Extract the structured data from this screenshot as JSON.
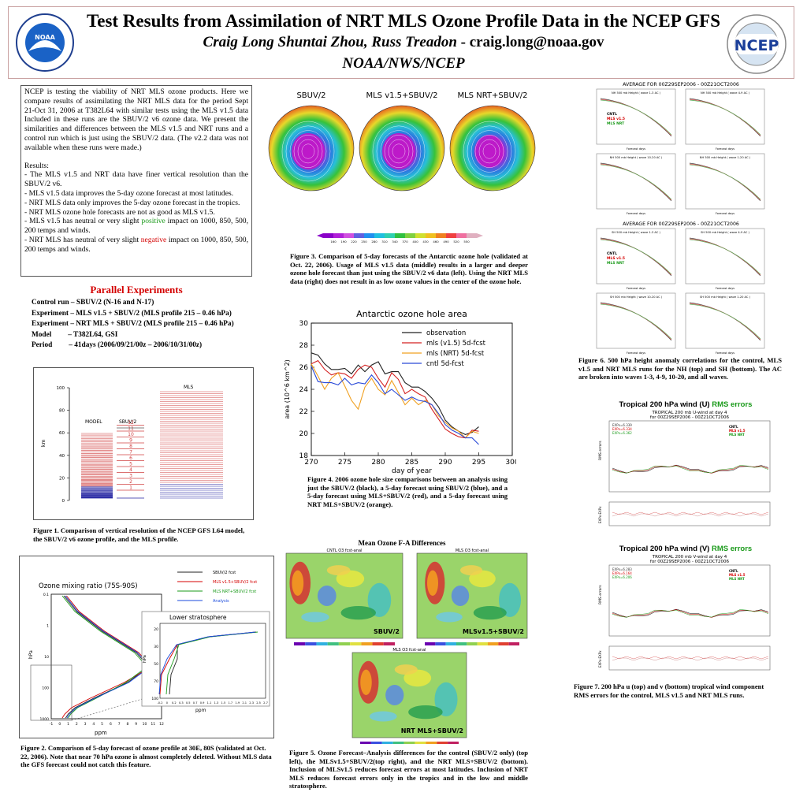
{
  "header": {
    "title": "Test Results from Assimilation of NRT MLS Ozone Profile Data in the NCEP GFS",
    "authors": "Craig Long Shuntai Zhou, Russ Treadon",
    "email": " - craig.long@noaa.gov",
    "affiliation": "NOAA/NWS/NCEP",
    "logo_left_text": "NOAA",
    "logo_right_text": "NCEP"
  },
  "intro": {
    "paragraph": "NCEP is testing the viability of NRT MLS ozone products.  Here we compare results of assimilating the NRT MLS data for the period Sept 21-Oct 31, 2006 at T382L64 with similar tests using the MLS v1.5 data  Included in these runs are the SBUV/2 v6 ozone data.  We present the similarities and differences between the MLS v1.5 and NRT runs and a control run which is just using the SBUV/2 data. (The v2.2 data was not available when these runs were made.)",
    "results_heading": "Results:",
    "r1": "- The MLS v1.5 and NRT data have finer vertical resolution than the SBUV/2 v6.",
    "r2": "- MLS v1.5 data improves the 5-day ozone forecast at most latitudes.",
    "r3": "- NRT MLS data only improves the 5-day ozone forecast in the tropics.",
    "r4": "- NRT MLS ozone hole forecasts are not as good as MLS v1.5.",
    "r5a": "- MLS v1.5 has neutral or very slight ",
    "r5b": "positive",
    "r5c": " impact on 1000, 850, 500, 200 temps and winds.",
    "r6a": "- NRT MLS has neutral of very slight ",
    "r6b": "negative",
    "r6c": " impact on 1000, 850, 500, 200 temps and winds."
  },
  "parallel": {
    "title": "Parallel Experiments",
    "control": "Control run – SBUV/2 (N-16 and N-17)",
    "exp1": "Experiment – MLS v1.5 + SBUV/2 (MLS profile 215 – 0.46 hPa)",
    "exp2": "Experiment – NRT MLS + SBUV/2 (MLS profile 215 – 0.46 hPa)",
    "model": "Model         – T382L64, GSI",
    "period": "Period         – 41days (2006/09/21/00z – 2006/10/31/00z)"
  },
  "fig1": {
    "caption": "Figure 1. Comparison of vertical resolution of the NCEP GFS L64 model, the SBUV/2 v6 ozone profile, and the MLS profile.",
    "ylabel": "km",
    "yticks": [
      "0",
      "20",
      "40",
      "60",
      "80",
      "100"
    ],
    "col_model": "MODEL",
    "col_sbuv": "SBUV/2",
    "col_mls": "MLS",
    "sbuv_layers": [
      "1",
      "2",
      "3",
      "4",
      "5",
      "6",
      "7",
      "8",
      "9",
      "10",
      "11",
      "12"
    ]
  },
  "fig2": {
    "caption": "Figure 2.   Comparison of  5-day forecast of ozone profile at 30E, 80S (validated at Oct. 22, 2006). Note that near 70 hPa ozone is almost completely deleted.  Without MLS data the GFS forecast could not catch this feature.",
    "title": "Ozone mixing ratio (75S-90S)",
    "inset_title": "Lower stratosphere",
    "xlabel": "ppm",
    "ylabel": "hPa",
    "legend": [
      "SBUV/2 fcst",
      "MLS v1.5+SBUV/2 fcst",
      "MLS NRT+SBUV/2 fcst",
      "Analysis"
    ],
    "legend_colors": [
      "#222222",
      "#d40000",
      "#1a9a1a",
      "#1a4adc"
    ],
    "xticks": [
      "-1",
      "0",
      "1",
      "2",
      "3",
      "4",
      "5",
      "6",
      "7",
      "8",
      "9",
      "10",
      "11",
      "12"
    ],
    "yticks": [
      "0.1",
      "1",
      "10",
      "100",
      "1000"
    ],
    "inset_xticks": [
      "-0.2",
      "0",
      "0.2",
      "0.3",
      "0.5",
      "0.7",
      "0.9",
      "1.1",
      "1.3",
      "1.5",
      "1.7",
      "1.9",
      "2.1",
      "2.3",
      "2.5",
      "2.7"
    ],
    "inset_yticks": [
      "20",
      "30",
      "50",
      "70",
      "100"
    ]
  },
  "fig3": {
    "panel_titles": [
      "SBUV/2",
      "MLS v1.5+SBUV/2",
      "MLS NRT+SBUV/2"
    ],
    "colorbar_ticks": [
      "160",
      "190",
      "220",
      "250",
      "280",
      "310",
      "340",
      "370",
      "400",
      "430",
      "460",
      "490",
      "520",
      "550"
    ],
    "caption": "Figure 3.     Comparison  of   5-day forecasts of the Antarctic ozone hole (validated at Oct. 22, 2006). Usage of MLS v1.5 data (middle) results in a larger and deeper ozone hole forecast than just using the SBUV/2 v6 data (left).  Using the NRT MLS data (right) does not result in as low ozone values in the center of the ozone hole."
  },
  "fig4": {
    "caption": "Figure 4. 2006 ozone hole size comparisons between an analysis using just the SBUV/2 (black), a 5-day forecast using SBUV/2 (blue), and a 5-day forecast  using MLS+SBUV/2 (red), and a 5-day forecast using NRT MLS+SBUV/2 (orange)."
  },
  "fig5": {
    "heading": "Mean Ozone F-A Differences",
    "top_titles": [
      "CNTL O3 fcst-anal",
      "MLS O3 fcst-anal"
    ],
    "bottom_title": "MLS O3 fcst-anal",
    "labels": [
      "SBUV/2",
      "MLSv1.5+SBUV/2",
      "NRT MLS+SBUV/2"
    ],
    "caption": "Figure 5. Ozone Forecast–Analysis differences for the control (SBUV/2 only) (top left), the MLSv1.5+SBUV/2(top right), and the NRT MLS+SBUV/2 (bottom).   Inclusion of MLSv1.5 reduces forecast errors at most latitudes. Inclusion of NRT MLS reduces forecast errors only in the tropics and in the low and middle stratosphere."
  },
  "fig6": {
    "title_nh": "AVERAGE FOR 00Z29SEP2006 - 00Z21OCT2006",
    "title_sh": "AVERAGE FOR 00Z29SEP2006 - 00Z21OCT2006",
    "nh_panels": [
      "NH 500 mb Height ( wave 1-3 AC )",
      "NH 500 mb Height ( wave 4-9 AC )",
      "NH 500 mb Height ( wave 10-20 AC )",
      "NH 500 mb Height ( wave 1-20 AC )"
    ],
    "sh_panels": [
      "SH 500 mb Height ( wave 1-3 AC )",
      "SH 500 mb Height ( wave 4-9 AC )",
      "SH 500 mb Height ( wave 10-20 AC )",
      "SH 500 mb Height ( wave 1-20 AC )"
    ],
    "legend": [
      "CNTL",
      "MLS v1.5",
      "MLS NRT"
    ],
    "xlabel": "Forecast days",
    "caption": "Figure 6. 500 hPa height anomaly correlations for the control, MLS v1.5 and NRT MLS runs for the NH (top) and SH (bottom). The AC are broken into waves 1-3, 4-9, 10-20, and all waves."
  },
  "fig7": {
    "u_title_a": "Tropical 200 hPa wind (U) ",
    "u_title_b": "RMS errors",
    "u_sub1": "TROPICAL 200 mb U-wind at day 4",
    "u_sub2": "for 00Z29SEP2006 - 00Z21OCT2006",
    "u_exps": [
      "EXPx=6.339",
      "EXPx=6.334",
      "EXPx=6.362"
    ],
    "v_title_a": "Tropical 200 hPa wind (V) ",
    "v_title_b": "RMS errors",
    "v_sub1": "TROPICAL 200 mb V-wind at day 4",
    "v_sub2": "for 00Z29SEP2006 - 00Z21OCT2006",
    "v_exps": [
      "EXPx=6.283",
      "EXPx=6.164",
      "EXPx=6.206"
    ],
    "legend": [
      "CNTL",
      "MLS v1.5",
      "MLS NRT"
    ],
    "ylabel_top": "RMS errors",
    "ylabel_bottom": "EXPx-EXPx",
    "caption": "Figure 7. 200 hPa u (top) and v (bottom) tropical wind component RMS errors for the control, MLS v1.5 and NRT MLS runs."
  },
  "chart_data": {
    "type": "line",
    "title": "Antarctic ozone hole area",
    "xlabel": "day of year",
    "ylabel": "area (10^6 km^2)",
    "xlim": [
      270,
      300
    ],
    "ylim": [
      18,
      30
    ],
    "xticks": [
      270,
      275,
      280,
      285,
      290,
      295,
      300
    ],
    "yticks": [
      18,
      20,
      22,
      24,
      26,
      28,
      30
    ],
    "legend_position": "top-right",
    "series": [
      {
        "name": "observation",
        "color": "#222222",
        "x": [
          270,
          271,
          272,
          273,
          274,
          275,
          276,
          277,
          278,
          279,
          280,
          281,
          282,
          283,
          284,
          285,
          286,
          287,
          288,
          289,
          290,
          291,
          292,
          293,
          294,
          295
        ],
        "y": [
          27.3,
          27.1,
          26.3,
          25.8,
          25.8,
          25.9,
          25.4,
          26.2,
          25.6,
          26.2,
          26.5,
          25.4,
          25.6,
          25.6,
          24.6,
          24.2,
          24.2,
          23.8,
          23.2,
          22.4,
          21.2,
          20.6,
          20.2,
          19.9,
          20.1,
          20.6
        ]
      },
      {
        "name": "mls (v1.5) 5d-fcst",
        "color": "#d42020",
        "x": [
          270,
          271,
          272,
          273,
          274,
          275,
          276,
          277,
          278,
          279,
          280,
          281,
          282,
          283,
          284,
          285,
          286,
          287,
          288,
          289,
          290,
          291,
          292,
          293,
          294,
          295
        ],
        "y": [
          26.3,
          26.6,
          25.8,
          25.3,
          25.5,
          25.4,
          25.0,
          25.8,
          26.2,
          26.0,
          25.0,
          24.2,
          25.5,
          24.9,
          23.6,
          24.0,
          23.6,
          23.3,
          22.2,
          21.3,
          20.4,
          20.0,
          19.7,
          19.6,
          20.3,
          20.2
        ]
      },
      {
        "name": "mls (NRT) 5d-fcst",
        "color": "#f0a020",
        "x": [
          270,
          271,
          272,
          273,
          274,
          275,
          276,
          277,
          278,
          279,
          280,
          281,
          282,
          283,
          284,
          285,
          286,
          287,
          288,
          289,
          290,
          291,
          292,
          293,
          294,
          295
        ],
        "y": [
          26.3,
          25.2,
          24.0,
          25.0,
          25.5,
          24.3,
          23.0,
          22.2,
          24.2,
          25.0,
          24.0,
          23.5,
          24.8,
          23.7,
          22.6,
          23.2,
          22.6,
          23.0,
          22.6,
          21.6,
          21.0,
          20.5,
          20.2,
          19.6,
          20.2,
          20.0
        ]
      },
      {
        "name": "cntl 5d-fcst",
        "color": "#2a4ad8",
        "x": [
          270,
          271,
          272,
          273,
          274,
          275,
          276,
          277,
          278,
          279,
          280,
          281,
          282,
          283,
          284,
          285,
          286,
          287,
          288,
          289,
          290,
          291,
          292,
          293,
          294,
          295
        ],
        "y": [
          26.1,
          24.7,
          24.6,
          24.6,
          24.4,
          25.0,
          24.4,
          24.6,
          24.5,
          25.3,
          24.6,
          23.6,
          24.0,
          23.5,
          23.0,
          23.3,
          23.0,
          22.9,
          22.6,
          21.8,
          20.8,
          20.3,
          20.0,
          19.6,
          19.6,
          19.0
        ]
      }
    ]
  }
}
